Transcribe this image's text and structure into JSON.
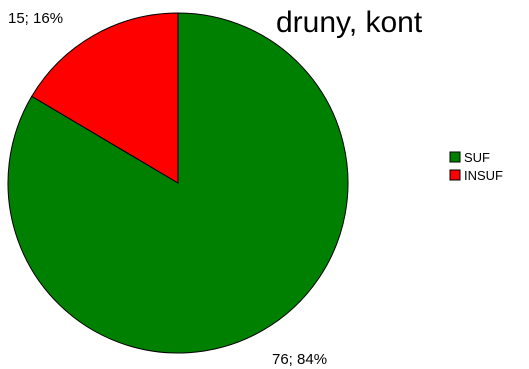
{
  "chart_data": {
    "type": "pie",
    "title": "druny, kont",
    "categories": [
      "SUF",
      "INSUF"
    ],
    "values": [
      76,
      15
    ],
    "percentages": [
      84,
      16
    ],
    "data_labels": [
      "76; 84%",
      "15; 16%"
    ],
    "colors": [
      "#008000",
      "#ff0000"
    ],
    "legend": {
      "position": "right",
      "entries": [
        "SUF",
        "INSUF"
      ]
    }
  }
}
